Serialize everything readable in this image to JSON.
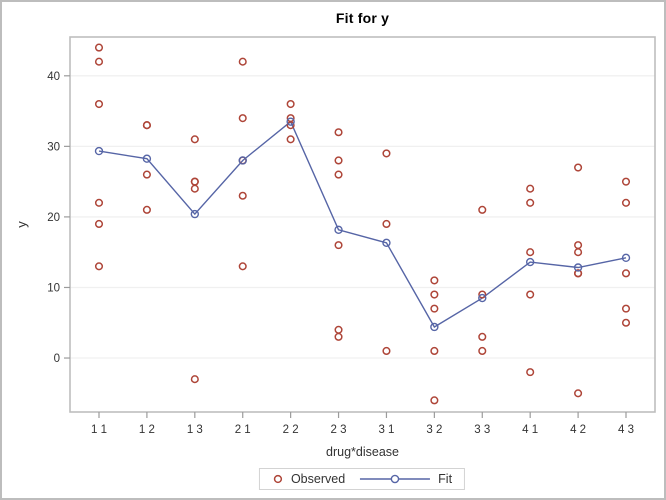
{
  "title": "Fit for y",
  "legend": {
    "observed_label": "Observed",
    "fit_label": "Fit"
  },
  "colors": {
    "observed": "#ae4538",
    "fit": "#5665a6",
    "grid": "#f0f0f0",
    "frame": "#bebebe",
    "tick": "#9b9b9b",
    "text": "#333333",
    "title_text": "#000000",
    "outer_border": "#bdbdbd",
    "legend_border": "#d3d3d3",
    "background": "#ffffff"
  },
  "chart_data": {
    "type": "scatter",
    "title": "Fit for y",
    "xlabel": "drug*disease",
    "ylabel": "y",
    "categories": [
      "1 1",
      "1 2",
      "1 3",
      "2 1",
      "2 2",
      "2 3",
      "3 1",
      "3 2",
      "3 3",
      "4 1",
      "4 2",
      "4 3"
    ],
    "series": [
      {
        "name": "Observed",
        "type": "scatter",
        "values_by_category": [
          [
            42,
            44,
            36,
            13,
            19,
            22
          ],
          [
            33,
            26,
            33,
            21
          ],
          [
            31,
            -3,
            25,
            25,
            24
          ],
          [
            28,
            23,
            34,
            42,
            13
          ],
          [
            34,
            33,
            31,
            36
          ],
          [
            3,
            26,
            28,
            32,
            4,
            16
          ],
          [
            1,
            29,
            19
          ],
          [
            11,
            9,
            7,
            1,
            -6
          ],
          [
            21,
            1,
            9,
            3
          ],
          [
            24,
            9,
            22,
            -2,
            15
          ],
          [
            27,
            12,
            12,
            -5,
            16,
            15
          ],
          [
            22,
            7,
            25,
            5,
            12
          ]
        ]
      },
      {
        "name": "Fit",
        "type": "line",
        "values": [
          29.33,
          28.25,
          20.4,
          28.0,
          33.5,
          18.17,
          16.33,
          4.4,
          8.5,
          13.6,
          12.83,
          14.2
        ]
      }
    ],
    "yticks": [
      0,
      10,
      20,
      30,
      40
    ],
    "ylim": [
      -7.65,
      45.5
    ],
    "grid": "horizontal",
    "legend_position": "bottom"
  }
}
